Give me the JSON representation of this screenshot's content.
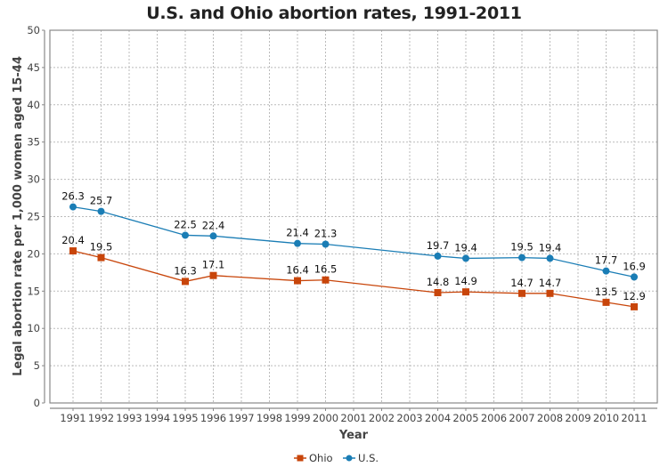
{
  "chart_data": {
    "type": "line",
    "title": "U.S. and Ohio abortion rates, 1991-2011",
    "xlabel": "Year",
    "ylabel": "Legal abortion rate per 1,000 women aged 15-44",
    "categories": [
      "1991",
      "1992",
      "1993",
      "1994",
      "1995",
      "1996",
      "1997",
      "1998",
      "1999",
      "2000",
      "2001",
      "2002",
      "2003",
      "2004",
      "2005",
      "2006",
      "2007",
      "2008",
      "2009",
      "2010",
      "2011"
    ],
    "ylim": [
      0,
      50
    ],
    "yticks": [
      0,
      5,
      10,
      15,
      20,
      25,
      30,
      35,
      40,
      45,
      50
    ],
    "grid": true,
    "legend_position": "bottom-center",
    "series": [
      {
        "name": "Ohio",
        "color": "#c8450a",
        "marker": "square",
        "x": [
          "1991",
          "1992",
          "1995",
          "1996",
          "1999",
          "2000",
          "2004",
          "2005",
          "2007",
          "2008",
          "2010",
          "2011"
        ],
        "values": [
          20.4,
          19.5,
          16.3,
          17.1,
          16.4,
          16.5,
          14.8,
          14.9,
          14.7,
          14.7,
          13.5,
          12.9
        ]
      },
      {
        "name": "U.S.",
        "color": "#1a7db5",
        "marker": "circle",
        "x": [
          "1991",
          "1992",
          "1995",
          "1996",
          "1999",
          "2000",
          "2004",
          "2005",
          "2007",
          "2008",
          "2010",
          "2011"
        ],
        "values": [
          26.3,
          25.7,
          22.5,
          22.4,
          21.4,
          21.3,
          19.7,
          19.4,
          19.5,
          19.4,
          17.7,
          16.9
        ]
      }
    ]
  }
}
